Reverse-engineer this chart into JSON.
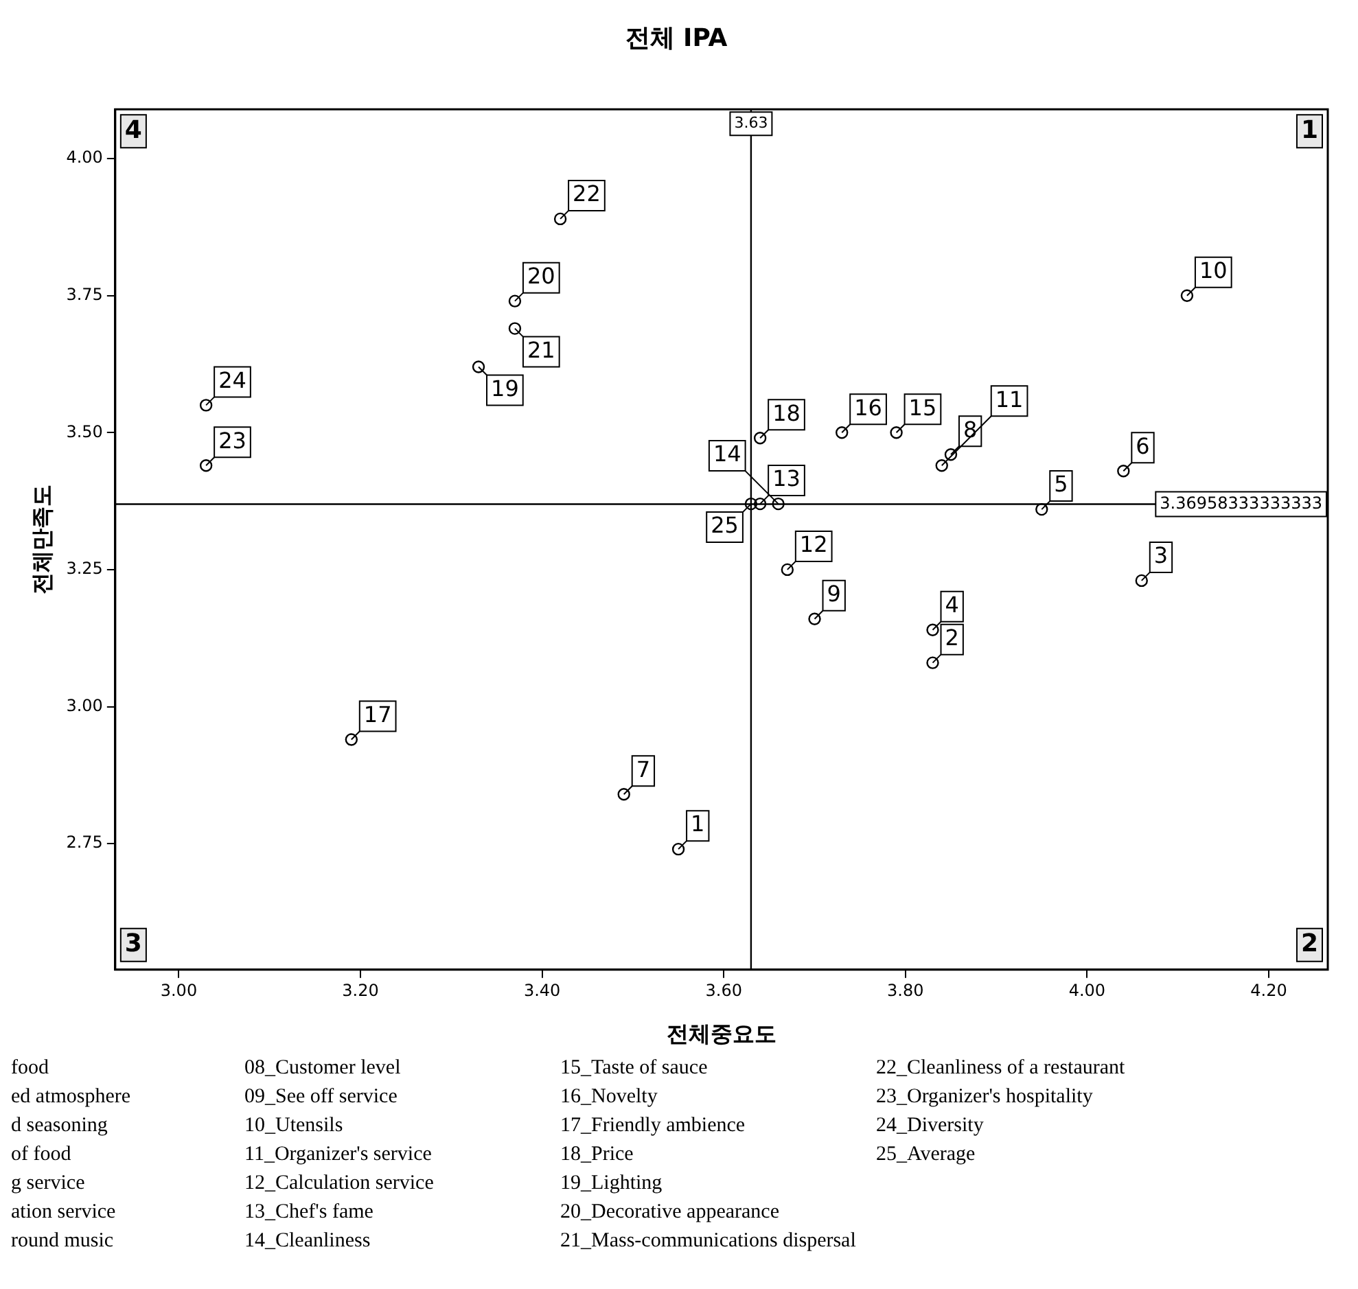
{
  "chart_data": {
    "type": "scatter",
    "title": "전체 IPA",
    "xlabel": "전체중요도",
    "ylabel": "전체만족도",
    "x": [
      3.55,
      3.83,
      4.06,
      3.83,
      3.95,
      4.04,
      3.49,
      3.85,
      3.7,
      4.11,
      3.84,
      3.67,
      3.64,
      3.66,
      3.79,
      3.73,
      3.19,
      3.64,
      3.33,
      3.37,
      3.37,
      3.42,
      3.03,
      3.03,
      3.63
    ],
    "series": [
      {
        "color": "#000000",
        "values": [
          2.74,
          3.08,
          3.23,
          3.14,
          3.36,
          3.43,
          2.84,
          3.46,
          3.16,
          3.75,
          3.44,
          3.25,
          3.37,
          3.37,
          3.5,
          3.5,
          2.94,
          3.49,
          3.62,
          3.74,
          3.69,
          3.89,
          3.44,
          3.55,
          3.37
        ]
      }
    ],
    "xlim": [
      2.93,
      4.265
    ],
    "ylim": [
      2.52,
      4.09
    ],
    "xticks": [
      {
        "value": 3,
        "label": "3.00"
      },
      {
        "value": 3.2,
        "label": "3.20"
      },
      {
        "value": 3.4,
        "label": "3.40"
      },
      {
        "value": 3.6,
        "label": "3.60"
      },
      {
        "value": 3.8,
        "label": "3.80"
      },
      {
        "value": 4,
        "label": "4.00"
      },
      {
        "value": 4.2,
        "label": "4.20"
      }
    ],
    "yticks": [
      {
        "value": 2.75,
        "label": "2.75"
      },
      {
        "value": 3,
        "label": "3.00"
      },
      {
        "value": 3.25,
        "label": "3.25"
      },
      {
        "value": 3.5,
        "label": "3.50"
      },
      {
        "value": 3.75,
        "label": "3.75"
      },
      {
        "value": 4,
        "label": "4.00"
      }
    ],
    "ref_lines": [
      {
        "axis": "x",
        "value": 3.63,
        "label": "3.63"
      },
      {
        "axis": "y",
        "value": 3.36958333333333,
        "label": "3.36958333333333"
      }
    ],
    "marker": "circle",
    "grid": false,
    "legend": false,
    "annotations": [
      "1",
      "2",
      "3",
      "4",
      {
        "text": "1",
        "x": 3.55,
        "y": 2.74
      },
      {
        "text": "2",
        "x": 3.83,
        "y": 3.08
      },
      {
        "text": "3",
        "x": 4.06,
        "y": 3.23
      },
      {
        "text": "4",
        "x": 3.83,
        "y": 3.14
      },
      {
        "text": "5",
        "x": 3.95,
        "y": 3.36
      },
      {
        "text": "6",
        "x": 4.04,
        "y": 3.43
      },
      {
        "text": "7",
        "x": 3.49,
        "y": 2.84
      },
      {
        "text": "8",
        "x": 3.85,
        "y": 3.46
      },
      {
        "text": "9",
        "x": 3.7,
        "y": 3.16
      },
      {
        "text": "10",
        "x": 4.11,
        "y": 3.75
      },
      {
        "text": "11",
        "x": 3.84,
        "y": 3.44
      },
      {
        "text": "12",
        "x": 3.67,
        "y": 3.25
      },
      {
        "text": "13",
        "x": 3.64,
        "y": 3.37
      },
      {
        "text": "14",
        "x": 3.66,
        "y": 3.37
      },
      {
        "text": "15",
        "x": 3.79,
        "y": 3.5
      },
      {
        "text": "16",
        "x": 3.73,
        "y": 3.5
      },
      {
        "text": "17",
        "x": 3.19,
        "y": 2.94
      },
      {
        "text": "18",
        "x": 3.64,
        "y": 3.49
      },
      {
        "text": "19",
        "x": 3.33,
        "y": 3.62
      },
      {
        "text": "20",
        "x": 3.37,
        "y": 3.74
      },
      {
        "text": "21",
        "x": 3.37,
        "y": 3.69
      },
      {
        "text": "22",
        "x": 3.42,
        "y": 3.89
      },
      {
        "text": "23",
        "x": 3.03,
        "y": 3.44
      },
      {
        "text": "24",
        "x": 3.03,
        "y": 3.55
      },
      {
        "text": "25",
        "x": 3.63,
        "y": 3.37
      },
      "food",
      "ed atmosphere",
      "d seasoning",
      "of food",
      "g service",
      "ation service",
      "round music",
      "08_Customer level",
      "09_See off service",
      "10_Utensils",
      "11_Organizer's service",
      "12_Calculation service",
      "13_Chef's fame",
      "14_Cleanliness",
      "15_Taste of sauce",
      "16_Novelty",
      "17_Friendly ambience",
      "18_Price",
      "19_Lighting",
      "20_Decorative appearance",
      "21_Mass-communications dispersal",
      "22_Cleanliness of a restaurant",
      "23_Organizer's hospitality",
      "24_Diversity",
      "25_Average"
    ]
  }
}
